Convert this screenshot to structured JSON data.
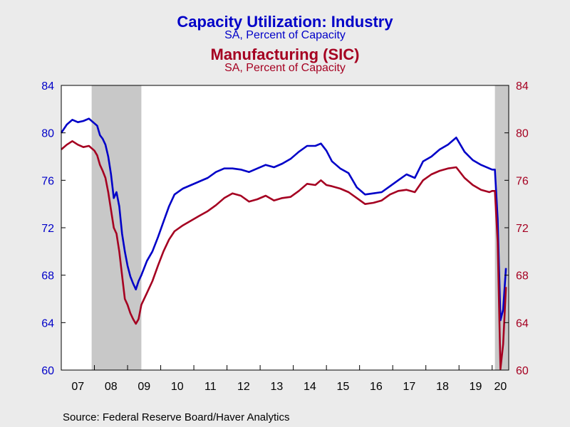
{
  "header": {
    "title1": "Capacity Utilization: Industry",
    "subtitle1": "SA, Percent of Capacity",
    "title2": "Manufacturing (SIC)",
    "subtitle2": "SA, Percent of Capacity"
  },
  "footer": {
    "source": "Source:  Federal Reserve Board/Haver Analytics"
  },
  "colors": {
    "industry": "#0000c8",
    "manufacturing": "#a50021",
    "recession": "#c8c8c8",
    "plot_bg": "#ffffff"
  },
  "chart_data": {
    "type": "line",
    "x_range": [
      "2007-01",
      "2020-07"
    ],
    "xtick_labels": [
      "07",
      "08",
      "09",
      "10",
      "11",
      "12",
      "13",
      "14",
      "15",
      "16",
      "17",
      "18",
      "19",
      "20"
    ],
    "ylim_left": [
      60,
      84
    ],
    "ylim_right": [
      60,
      84
    ],
    "yticks": [
      60,
      64,
      68,
      72,
      76,
      80,
      84
    ],
    "recessions": [
      [
        "2007-12",
        "2009-06"
      ],
      [
        "2020-02",
        "2020-07"
      ]
    ],
    "series": [
      {
        "name": "Capacity Utilization: Industry",
        "axis": "left",
        "points": [
          [
            "2007-01",
            80.0
          ],
          [
            "2007-03",
            80.7
          ],
          [
            "2007-05",
            81.1
          ],
          [
            "2007-07",
            80.9
          ],
          [
            "2007-09",
            81.0
          ],
          [
            "2007-11",
            81.2
          ],
          [
            "2008-01",
            80.8
          ],
          [
            "2008-02",
            80.6
          ],
          [
            "2008-03",
            79.8
          ],
          [
            "2008-04",
            79.5
          ],
          [
            "2008-05",
            79.0
          ],
          [
            "2008-06",
            78.0
          ],
          [
            "2008-07",
            76.5
          ],
          [
            "2008-08",
            74.5
          ],
          [
            "2008-09",
            75.0
          ],
          [
            "2008-10",
            73.8
          ],
          [
            "2008-11",
            71.5
          ],
          [
            "2008-12",
            70.0
          ],
          [
            "2009-01",
            68.8
          ],
          [
            "2009-02",
            67.9
          ],
          [
            "2009-03",
            67.3
          ],
          [
            "2009-04",
            66.8
          ],
          [
            "2009-05",
            67.5
          ],
          [
            "2009-06",
            68.0
          ],
          [
            "2009-08",
            69.2
          ],
          [
            "2009-10",
            70.0
          ],
          [
            "2009-12",
            71.2
          ],
          [
            "2010-02",
            72.5
          ],
          [
            "2010-04",
            73.8
          ],
          [
            "2010-06",
            74.8
          ],
          [
            "2010-09",
            75.3
          ],
          [
            "2010-12",
            75.6
          ],
          [
            "2011-03",
            75.9
          ],
          [
            "2011-06",
            76.2
          ],
          [
            "2011-09",
            76.7
          ],
          [
            "2011-12",
            77.0
          ],
          [
            "2012-03",
            77.0
          ],
          [
            "2012-06",
            76.9
          ],
          [
            "2012-09",
            76.7
          ],
          [
            "2012-12",
            77.0
          ],
          [
            "2013-03",
            77.3
          ],
          [
            "2013-06",
            77.1
          ],
          [
            "2013-09",
            77.4
          ],
          [
            "2013-12",
            77.8
          ],
          [
            "2014-03",
            78.4
          ],
          [
            "2014-06",
            78.9
          ],
          [
            "2014-09",
            78.9
          ],
          [
            "2014-11",
            79.1
          ],
          [
            "2015-01",
            78.5
          ],
          [
            "2015-03",
            77.6
          ],
          [
            "2015-06",
            77.0
          ],
          [
            "2015-09",
            76.6
          ],
          [
            "2015-12",
            75.4
          ],
          [
            "2016-03",
            74.8
          ],
          [
            "2016-06",
            74.9
          ],
          [
            "2016-09",
            75.0
          ],
          [
            "2016-12",
            75.5
          ],
          [
            "2017-03",
            76.0
          ],
          [
            "2017-06",
            76.5
          ],
          [
            "2017-09",
            76.2
          ],
          [
            "2017-12",
            77.6
          ],
          [
            "2018-03",
            78.0
          ],
          [
            "2018-06",
            78.6
          ],
          [
            "2018-09",
            79.0
          ],
          [
            "2018-12",
            79.6
          ],
          [
            "2019-03",
            78.4
          ],
          [
            "2019-06",
            77.7
          ],
          [
            "2019-09",
            77.3
          ],
          [
            "2019-12",
            77.0
          ],
          [
            "2020-01",
            76.9
          ],
          [
            "2020-02",
            76.9
          ],
          [
            "2020-03",
            72.7
          ],
          [
            "2020-04",
            64.2
          ],
          [
            "2020-05",
            65.1
          ],
          [
            "2020-06",
            68.6
          ]
        ]
      },
      {
        "name": "Manufacturing (SIC)",
        "axis": "right",
        "points": [
          [
            "2007-01",
            78.6
          ],
          [
            "2007-03",
            79.0
          ],
          [
            "2007-05",
            79.3
          ],
          [
            "2007-07",
            79.0
          ],
          [
            "2007-09",
            78.8
          ],
          [
            "2007-11",
            78.9
          ],
          [
            "2008-01",
            78.5
          ],
          [
            "2008-02",
            78.1
          ],
          [
            "2008-03",
            77.3
          ],
          [
            "2008-04",
            76.8
          ],
          [
            "2008-05",
            76.2
          ],
          [
            "2008-06",
            75.0
          ],
          [
            "2008-07",
            73.5
          ],
          [
            "2008-08",
            72.0
          ],
          [
            "2008-09",
            71.5
          ],
          [
            "2008-10",
            70.0
          ],
          [
            "2008-11",
            68.0
          ],
          [
            "2008-12",
            66.0
          ],
          [
            "2009-01",
            65.5
          ],
          [
            "2009-02",
            64.8
          ],
          [
            "2009-03",
            64.3
          ],
          [
            "2009-04",
            63.9
          ],
          [
            "2009-05",
            64.3
          ],
          [
            "2009-06",
            65.5
          ],
          [
            "2009-08",
            66.5
          ],
          [
            "2009-10",
            67.5
          ],
          [
            "2009-12",
            68.8
          ],
          [
            "2010-02",
            70.0
          ],
          [
            "2010-04",
            71.0
          ],
          [
            "2010-06",
            71.7
          ],
          [
            "2010-09",
            72.2
          ],
          [
            "2010-12",
            72.6
          ],
          [
            "2011-03",
            73.0
          ],
          [
            "2011-06",
            73.4
          ],
          [
            "2011-09",
            73.9
          ],
          [
            "2011-12",
            74.5
          ],
          [
            "2012-03",
            74.9
          ],
          [
            "2012-06",
            74.7
          ],
          [
            "2012-09",
            74.2
          ],
          [
            "2012-12",
            74.4
          ],
          [
            "2013-03",
            74.7
          ],
          [
            "2013-06",
            74.3
          ],
          [
            "2013-09",
            74.5
          ],
          [
            "2013-12",
            74.6
          ],
          [
            "2014-03",
            75.1
          ],
          [
            "2014-06",
            75.7
          ],
          [
            "2014-09",
            75.6
          ],
          [
            "2014-11",
            76.0
          ],
          [
            "2015-01",
            75.6
          ],
          [
            "2015-03",
            75.5
          ],
          [
            "2015-06",
            75.3
          ],
          [
            "2015-09",
            75.0
          ],
          [
            "2015-12",
            74.5
          ],
          [
            "2016-03",
            74.0
          ],
          [
            "2016-06",
            74.1
          ],
          [
            "2016-09",
            74.3
          ],
          [
            "2016-12",
            74.8
          ],
          [
            "2017-03",
            75.1
          ],
          [
            "2017-06",
            75.2
          ],
          [
            "2017-09",
            75.0
          ],
          [
            "2017-12",
            76.0
          ],
          [
            "2018-03",
            76.5
          ],
          [
            "2018-06",
            76.8
          ],
          [
            "2018-09",
            77.0
          ],
          [
            "2018-12",
            77.1
          ],
          [
            "2019-03",
            76.2
          ],
          [
            "2019-06",
            75.6
          ],
          [
            "2019-09",
            75.2
          ],
          [
            "2019-12",
            75.0
          ],
          [
            "2020-01",
            75.1
          ],
          [
            "2020-02",
            75.1
          ],
          [
            "2020-03",
            70.8
          ],
          [
            "2020-04",
            60.1
          ],
          [
            "2020-05",
            62.2
          ],
          [
            "2020-06",
            67.0
          ]
        ]
      }
    ]
  }
}
